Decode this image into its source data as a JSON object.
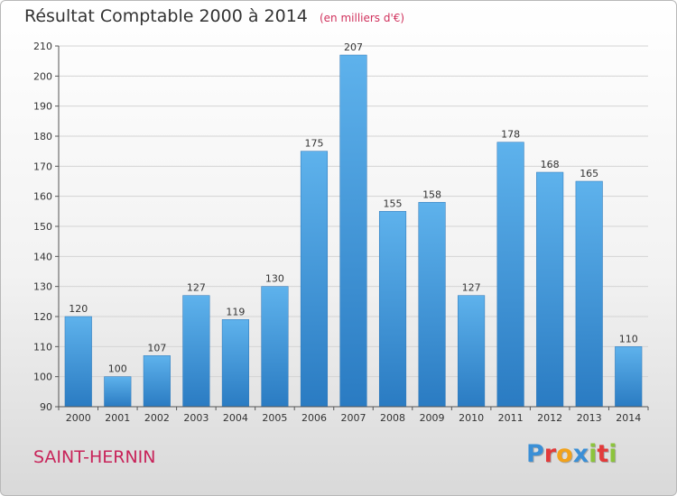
{
  "chart_data": {
    "type": "bar",
    "title": "Résultat Comptable 2000 à 2014",
    "subtitle": "(en milliers d'€)",
    "categories": [
      "2000",
      "2001",
      "2002",
      "2003",
      "2004",
      "2005",
      "2006",
      "2007",
      "2008",
      "2009",
      "2010",
      "2011",
      "2012",
      "2013",
      "2014"
    ],
    "values": [
      120,
      100,
      107,
      127,
      119,
      130,
      175,
      207,
      155,
      158,
      127,
      178,
      168,
      165,
      110
    ],
    "xlabel": "",
    "ylabel": "",
    "ylim": [
      90,
      210
    ],
    "yticks": [
      90,
      100,
      110,
      120,
      130,
      140,
      150,
      160,
      170,
      180,
      190,
      200,
      210
    ],
    "grid": true,
    "bar_color": "#3a92d8"
  },
  "footer": {
    "commune": "SAINT-HERNIN",
    "logo_letters": [
      "P",
      "r",
      "o",
      "x",
      "i",
      "t",
      "i"
    ],
    "logo_colors": [
      "#3a8fd6",
      "#e23a3a",
      "#f2a21b",
      "#3a8fd6",
      "#8cc43c",
      "#e23a3a",
      "#8cc43c"
    ]
  }
}
